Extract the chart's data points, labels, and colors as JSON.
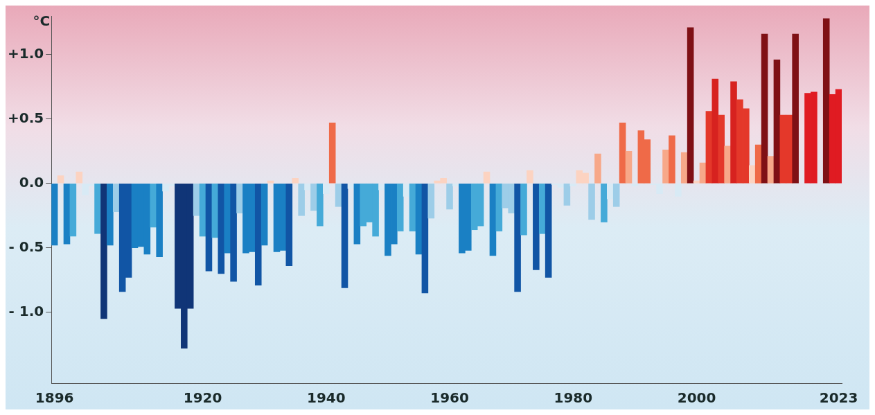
{
  "chart_data": {
    "type": "bar",
    "ylabel": "°C",
    "categories": [
      "1896",
      null,
      null,
      null,
      null,
      null,
      null,
      null,
      null,
      null,
      null,
      null,
      null,
      null,
      null,
      null,
      null,
      null,
      null,
      null,
      null,
      null,
      null,
      null,
      "1920",
      null,
      null,
      null,
      null,
      null,
      null,
      null,
      null,
      null,
      null,
      null,
      null,
      null,
      null,
      null,
      null,
      null,
      null,
      null,
      "1940",
      null,
      null,
      null,
      null,
      null,
      null,
      null,
      null,
      null,
      null,
      null,
      null,
      null,
      null,
      null,
      null,
      null,
      null,
      null,
      "1960",
      null,
      null,
      null,
      null,
      null,
      null,
      null,
      null,
      null,
      null,
      null,
      null,
      null,
      null,
      null,
      null,
      null,
      null,
      null,
      "1980",
      null,
      null,
      null,
      null,
      null,
      null,
      null,
      null,
      null,
      null,
      null,
      null,
      null,
      null,
      null,
      null,
      null,
      null,
      null,
      "2000",
      null,
      null,
      null,
      null,
      null,
      null,
      null,
      null,
      null,
      null,
      null,
      null,
      null,
      null,
      null,
      null,
      null,
      null,
      null,
      null,
      null,
      null,
      "2023"
    ],
    "values": [
      -0.48,
      0.06,
      -0.47,
      -0.41,
      0.09,
      -0.09,
      -0.02,
      -0.39,
      -1.05,
      -0.48,
      -0.22,
      -0.84,
      -0.73,
      -0.5,
      -0.49,
      -0.55,
      -0.34,
      -0.57,
      -0.06,
      -0.02,
      -0.97,
      -1.28,
      -0.97,
      -0.25,
      -0.41,
      -0.68,
      -0.42,
      -0.7,
      -0.54,
      -0.76,
      -0.23,
      -0.54,
      -0.53,
      -0.79,
      -0.48,
      0.02,
      -0.53,
      -0.52,
      -0.64,
      0.04,
      -0.25,
      -0.05,
      -0.21,
      -0.33,
      -0.08,
      0.47,
      -0.18,
      -0.81,
      -0.04,
      -0.47,
      -0.33,
      -0.3,
      -0.41,
      -0.05,
      -0.56,
      -0.47,
      -0.37,
      -0.1,
      -0.37,
      -0.55,
      -0.85,
      -0.27,
      0.02,
      0.04,
      -0.2,
      -0.02,
      -0.54,
      -0.52,
      -0.36,
      -0.33,
      0.09,
      -0.56,
      -0.37,
      -0.19,
      -0.23,
      -0.84,
      -0.4,
      0.1,
      -0.67,
      -0.39,
      -0.73,
      -0.01,
      -0.03,
      -0.17,
      -0.02,
      0.1,
      0.08,
      -0.28,
      0.23,
      -0.3,
      -0.12,
      -0.18,
      0.47,
      0.25,
      -0.02,
      0.41,
      0.34,
      -0.01,
      -0.08,
      0.26,
      0.37,
      -0.1,
      0.24,
      1.21,
      0.02,
      0.16,
      0.56,
      0.81,
      0.53,
      0.29,
      0.79,
      0.65,
      0.58,
      0.14,
      0.3,
      1.16,
      0.21,
      0.96,
      0.53,
      0.53,
      1.16,
      null,
      0.7,
      0.71,
      null,
      1.28,
      0.69,
      0.73
    ],
    "colors": [
      "#1a80c4",
      "#fcd3c1",
      "#1a80c4",
      "#45aad8",
      "#fcd3c1",
      "#d8eaf5",
      "#d8eaf5",
      "#45aad8",
      "#103577",
      "#1a80c4",
      "#9dcde8",
      "#1155a5",
      "#1155a5",
      "#1a80c4",
      "#1a80c4",
      "#1a80c4",
      "#45aad8",
      "#1a80c4",
      "#d8eaf5",
      "#d8eaf5",
      "#103577",
      "#103577",
      "#103577",
      "#9dcde8",
      "#45aad8",
      "#1155a5",
      "#45aad8",
      "#1155a5",
      "#1a80c4",
      "#1155a5",
      "#9dcde8",
      "#1a80c4",
      "#1a80c4",
      "#1155a5",
      "#1a80c4",
      "#fcd3c1",
      "#1a80c4",
      "#1a80c4",
      "#1155a5",
      "#fcd3c1",
      "#9dcde8",
      "#d8eaf5",
      "#9dcde8",
      "#45aad8",
      "#d8eaf5",
      "#ef6a48",
      "#9dcde8",
      "#1155a5",
      "#d8eaf5",
      "#1a80c4",
      "#45aad8",
      "#45aad8",
      "#45aad8",
      "#d8eaf5",
      "#1a80c4",
      "#1a80c4",
      "#45aad8",
      "#d8eaf5",
      "#45aad8",
      "#1a80c4",
      "#1155a5",
      "#9dcde8",
      "#fcd3c1",
      "#fcd3c1",
      "#9dcde8",
      "#d8eaf5",
      "#1a80c4",
      "#1a80c4",
      "#45aad8",
      "#45aad8",
      "#fcd3c1",
      "#1a80c4",
      "#45aad8",
      "#9dcde8",
      "#9dcde8",
      "#1155a5",
      "#45aad8",
      "#fcd3c1",
      "#1155a5",
      "#45aad8",
      "#1155a5",
      "#d8eaf5",
      "#d8eaf5",
      "#9dcde8",
      "#d8eaf5",
      "#fcd3c1",
      "#fcd3c1",
      "#9dcde8",
      "#f7a889",
      "#45aad8",
      "#d8eaf5",
      "#9dcde8",
      "#ef6a48",
      "#f7a889",
      "#d8eaf5",
      "#ef6a48",
      "#ef6a48",
      "#d8eaf5",
      "#d8eaf5",
      "#f7a889",
      "#ef6a48",
      "#d8eaf5",
      "#f7a889",
      "#7f1015",
      "#fcd3c1",
      "#f7a889",
      "#e4382a",
      "#d7221f",
      "#e4382a",
      "#f7a889",
      "#d7221f",
      "#e4382a",
      "#e4382a",
      "#fcd3c1",
      "#ef6a48",
      "#7f1015",
      "#f7a889",
      "#7f1015",
      "#e4382a",
      "#e4382a",
      "#7f1015",
      "#7f1015",
      "#e01b22",
      "#e01b22",
      "#7f1015",
      "#7f1015",
      "#e01b22",
      "#e01b22"
    ],
    "ylim": [
      -1.55,
      1.3
    ],
    "yticks": [
      {
        "value": -1.0,
        "label": "- 1.0"
      },
      {
        "value": -0.5,
        "label": "- 0.5"
      },
      {
        "value": 0,
        "label": "0.0"
      },
      {
        "value": 0.5,
        "label": "+0.5"
      },
      {
        "value": 1.0,
        "label": "+1.0"
      }
    ],
    "grid": false,
    "legend": false
  }
}
